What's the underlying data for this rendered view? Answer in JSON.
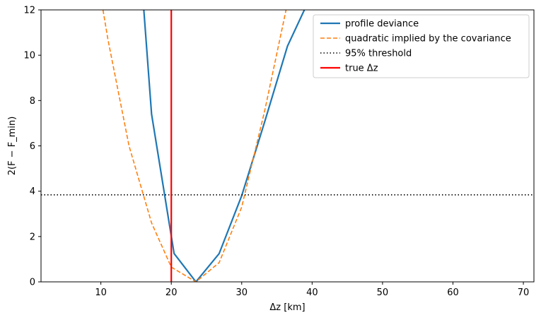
{
  "chart_data": {
    "type": "line",
    "xlabel": "Δz [km]",
    "ylabel": "2(F − F_min)",
    "xlim": [
      1.5,
      71.5
    ],
    "ylim": [
      0,
      12
    ],
    "xticks": [
      10,
      20,
      30,
      40,
      50,
      60,
      70
    ],
    "yticks": [
      0,
      2,
      4,
      6,
      8,
      10,
      12
    ],
    "grid": false,
    "legend_position": "top-right",
    "series": [
      {
        "name": "profile deviance",
        "color": "#1f77b4",
        "style": "solid",
        "x": [
          16.1,
          17.2,
          20.4,
          23.5,
          26.8,
          30.0,
          33.3,
          36.5,
          38.9
        ],
        "y": [
          12.0,
          7.4,
          1.25,
          0.0,
          1.25,
          3.8,
          7.1,
          10.4,
          12.0
        ]
      },
      {
        "name": "quadratic implied by the covariance",
        "color": "#ff7f0e",
        "style": "dashed",
        "x": [
          10.3,
          11.0,
          14.0,
          17.2,
          20.0,
          23.5,
          26.8,
          30.0,
          33.3,
          36.3
        ],
        "y": [
          12.0,
          10.7,
          6.0,
          2.6,
          0.65,
          0.0,
          0.85,
          3.3,
          7.6,
          12.0
        ]
      },
      {
        "name": "95% threshold",
        "color": "#000000",
        "style": "dotted",
        "orientation": "horizontal",
        "value": 3.84
      },
      {
        "name": "true Δz",
        "color": "#ff0000",
        "style": "solid",
        "orientation": "vertical",
        "value": 20.0
      }
    ]
  }
}
